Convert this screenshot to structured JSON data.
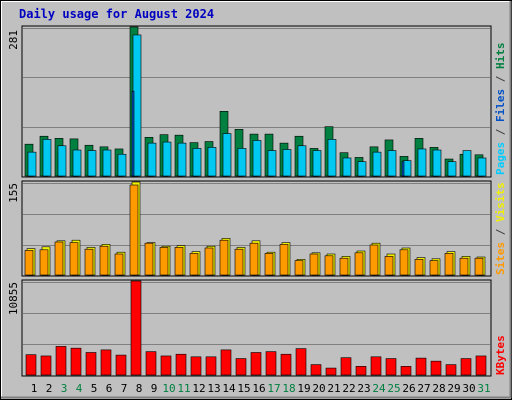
{
  "chart_data": {
    "type": "bar",
    "title": "Daily usage for August 2024",
    "categories": [
      "1",
      "2",
      "3",
      "4",
      "5",
      "6",
      "7",
      "8",
      "9",
      "10",
      "11",
      "12",
      "13",
      "14",
      "15",
      "16",
      "17",
      "18",
      "19",
      "20",
      "21",
      "22",
      "23",
      "24",
      "25",
      "26",
      "27",
      "28",
      "29",
      "30",
      "31"
    ],
    "weekend_days": [
      "3",
      "4",
      "10",
      "11",
      "17",
      "18",
      "24",
      "25",
      "31"
    ],
    "panels": [
      {
        "name": "hits-files-pages",
        "ymax_label": "281",
        "ylim": [
          0,
          281
        ],
        "grid": true,
        "series": [
          {
            "name": "Hits",
            "color": "#008040",
            "values": [
              60,
              75,
              71,
              70,
              58,
              55,
              51,
              281,
              73,
              78,
              77,
              63,
              65,
              122,
              88,
              79,
              79,
              62,
              75,
              52,
              93,
              44,
              35,
              55,
              68,
              37,
              71,
              54,
              32,
              41,
              40
            ]
          },
          {
            "name": "Files",
            "color": "#00c8f0",
            "values": [
              45,
              69,
              57,
              49,
              48,
              49,
              41,
              266,
              62,
              64,
              62,
              52,
              54,
              80,
              52,
              67,
              48,
              50,
              57,
              48,
              69,
              34,
              27,
              45,
              48,
              29,
              51,
              49,
              27,
              48,
              34
            ]
          },
          {
            "name": "Pages",
            "color": "#00ccff",
            "values": [
              0,
              0,
              0,
              0,
              0,
              0,
              0,
              160,
              0,
              0,
              0,
              0,
              0,
              0,
              0,
              0,
              0,
              0,
              0,
              0,
              0,
              0,
              0,
              0,
              0,
              27,
              0,
              0,
              0,
              0,
              0
            ]
          }
        ]
      },
      {
        "name": "sites-visits",
        "ymax_label": "155",
        "ylim": [
          0,
          155
        ],
        "grid": true,
        "series": [
          {
            "name": "Visits",
            "color": "#f0f000",
            "values": [
              44,
              47,
              57,
              58,
              46,
              51,
              38,
              155,
              54,
              48,
              49,
              39,
              48,
              61,
              46,
              57,
              38,
              54,
              26,
              37,
              35,
              31,
              40,
              53,
              35,
              45,
              29,
              27,
              39,
              31,
              30
            ]
          },
          {
            "name": "Sites",
            "color": "#ff9900",
            "values": [
              41,
              42,
              55,
              54,
              43,
              48,
              35,
              150,
              53,
              46,
              46,
              36,
              45,
              58,
              43,
              53,
              36,
              51,
              24,
              35,
              32,
              28,
              37,
              50,
              31,
              42,
              26,
              24,
              36,
              28,
              28
            ]
          }
        ]
      },
      {
        "name": "kbytes",
        "ymax_label": "10855",
        "ylim": [
          0,
          10855
        ],
        "grid": true,
        "series": [
          {
            "name": "KBytes",
            "color": "#ff0000",
            "values": [
              2350,
              2200,
              3300,
              3100,
              2600,
              2900,
              2300,
              10855,
              2700,
              2200,
              2400,
              2100,
              2100,
              2900,
              1900,
              2600,
              2700,
              2400,
              3050,
              1200,
              800,
              2000,
              1000,
              2100,
              1900,
              1000,
              1950,
              1600,
              1200,
              1900,
              2200
            ]
          }
        ]
      }
    ],
    "right_labels": {
      "panel1": [
        {
          "text": "Pages",
          "color": "#00ccff"
        },
        {
          "text": " / ",
          "color": "#404040"
        },
        {
          "text": "Files",
          "color": "#0050c8"
        },
        {
          "text": " / ",
          "color": "#404040"
        },
        {
          "text": "Hits",
          "color": "#008040"
        }
      ],
      "panel2": [
        {
          "text": "Sites",
          "color": "#ff9900"
        },
        {
          "text": " / ",
          "color": "#404040"
        },
        {
          "text": "Visits",
          "color": "#f0f000"
        }
      ],
      "panel3": [
        {
          "text": "KBytes",
          "color": "#ff0000"
        }
      ]
    },
    "colors": {
      "background": "#c0c0c0",
      "title": "#0000c0",
      "weekday_label": "#000000",
      "weekend_label": "#008040"
    }
  }
}
